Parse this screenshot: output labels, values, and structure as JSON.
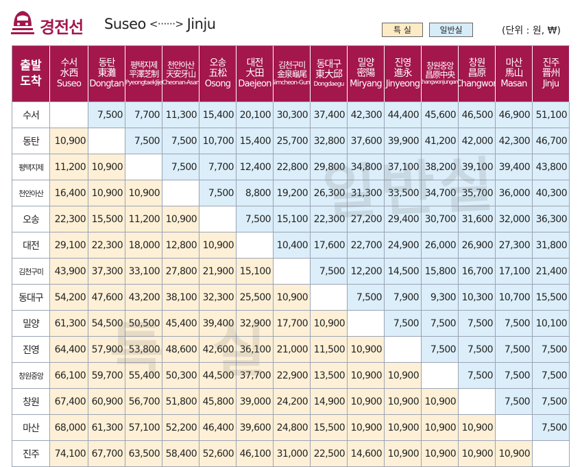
{
  "header": {
    "title_ko": "경전선",
    "route_from": "Suseo",
    "route_arrow": "<······>",
    "route_to": "Jinju",
    "legend_special": "특 실",
    "legend_general": "일반실",
    "unit": "(단위 : 원, ₩)"
  },
  "corner": {
    "top": "출발",
    "bottom": "도착"
  },
  "columns": [
    {
      "ko": "수서",
      "hanja": "水西",
      "en": "Suseo"
    },
    {
      "ko": "동탄",
      "hanja": "東灘",
      "en": "Dongtan"
    },
    {
      "ko": "평택지제",
      "hanja": "平澤芝制",
      "en": "PyeongtaekJije"
    },
    {
      "ko": "천안아산",
      "hanja": "天安牙山",
      "en": "Cheonan-Asan"
    },
    {
      "ko": "오송",
      "hanja": "五松",
      "en": "Osong"
    },
    {
      "ko": "대전",
      "hanja": "大田",
      "en": "Daejeon"
    },
    {
      "ko": "김천구미",
      "hanja": "金泉龜尾",
      "en": "Gimcheon-Gumi"
    },
    {
      "ko": "동대구",
      "hanja": "東大邱",
      "en": "Dongdaegu"
    },
    {
      "ko": "밀양",
      "hanja": "密陽",
      "en": "Miryang"
    },
    {
      "ko": "진영",
      "hanja": "進永",
      "en": "Jinyeong"
    },
    {
      "ko": "창원중앙",
      "hanja": "昌原中央",
      "en": "Changwonjungang"
    },
    {
      "ko": "창원",
      "hanja": "昌原",
      "en": "Changwon"
    },
    {
      "ko": "마산",
      "hanja": "馬山",
      "en": "Masan"
    },
    {
      "ko": "진주",
      "hanja": "晋州",
      "en": "Jinju"
    }
  ],
  "rows": [
    {
      "name": "수서",
      "cells": [
        "",
        "7,500",
        "7,700",
        "11,300",
        "15,400",
        "20,100",
        "30,300",
        "37,400",
        "42,300",
        "44,400",
        "45,600",
        "46,500",
        "46,900",
        "51,100"
      ]
    },
    {
      "name": "동탄",
      "cells": [
        "10,900",
        "",
        "7,500",
        "7,500",
        "10,700",
        "15,400",
        "25,700",
        "32,800",
        "37,600",
        "39,900",
        "41,200",
        "42,000",
        "42,300",
        "46,700"
      ]
    },
    {
      "name": "평택지제",
      "cells": [
        "11,200",
        "10,900",
        "",
        "7,500",
        "7,700",
        "12,400",
        "22,800",
        "29,800",
        "34,800",
        "37,100",
        "38,200",
        "39,100",
        "39,400",
        "43,800"
      ]
    },
    {
      "name": "천안아산",
      "cells": [
        "16,400",
        "10,900",
        "10,900",
        "",
        "7,500",
        "8,800",
        "19,200",
        "26,300",
        "31,300",
        "33,500",
        "34,700",
        "35,700",
        "36,000",
        "40,300"
      ]
    },
    {
      "name": "오송",
      "cells": [
        "22,300",
        "15,500",
        "11,200",
        "10,900",
        "",
        "7,500",
        "15,100",
        "22,300",
        "27,200",
        "29,400",
        "30,700",
        "31,600",
        "32,000",
        "36,300"
      ]
    },
    {
      "name": "대전",
      "cells": [
        "29,100",
        "22,300",
        "18,000",
        "12,800",
        "10,900",
        "",
        "10,400",
        "17,600",
        "22,700",
        "24,900",
        "26,000",
        "26,900",
        "27,300",
        "31,800"
      ]
    },
    {
      "name": "김천구미",
      "cells": [
        "43,900",
        "37,300",
        "33,100",
        "27,800",
        "21,900",
        "15,100",
        "",
        "7,500",
        "12,200",
        "14,500",
        "15,800",
        "16,700",
        "17,100",
        "21,400"
      ]
    },
    {
      "name": "동대구",
      "cells": [
        "54,200",
        "47,600",
        "43,200",
        "38,100",
        "32,300",
        "25,500",
        "10,900",
        "",
        "7,500",
        "7,900",
        "9,300",
        "10,300",
        "10,700",
        "15,500"
      ]
    },
    {
      "name": "밀양",
      "cells": [
        "61,300",
        "54,500",
        "50,500",
        "45,400",
        "39,400",
        "32,900",
        "17,700",
        "10,900",
        "",
        "7,500",
        "7,500",
        "7,500",
        "7,500",
        "10,100"
      ]
    },
    {
      "name": "진영",
      "cells": [
        "64,400",
        "57,900",
        "53,800",
        "48,600",
        "42,600",
        "36,100",
        "21,000",
        "11,500",
        "10,900",
        "",
        "7,500",
        "7,500",
        "7,500",
        "7,500"
      ]
    },
    {
      "name": "창원중앙",
      "cells": [
        "66,100",
        "59,700",
        "55,400",
        "50,300",
        "44,500",
        "37,700",
        "22,900",
        "13,500",
        "10,900",
        "10,900",
        "",
        "7,500",
        "7,500",
        "7,500"
      ]
    },
    {
      "name": "창원",
      "cells": [
        "67,400",
        "60,900",
        "56,700",
        "51,800",
        "45,800",
        "39,000",
        "24,200",
        "14,900",
        "10,900",
        "10,900",
        "10,900",
        "",
        "7,500",
        "7,500"
      ]
    },
    {
      "name": "마산",
      "cells": [
        "68,000",
        "61,300",
        "57,100",
        "52,200",
        "46,400",
        "39,600",
        "24,800",
        "15,500",
        "10,900",
        "10,900",
        "10,900",
        "10,900",
        "",
        "7,500"
      ]
    },
    {
      "name": "진주",
      "cells": [
        "74,100",
        "67,700",
        "63,500",
        "58,400",
        "52,600",
        "46,100",
        "31,000",
        "22,500",
        "14,600",
        "10,900",
        "10,900",
        "10,900",
        "10,900",
        ""
      ]
    }
  ],
  "watermarks": {
    "general": "일반실",
    "special": "특 실"
  },
  "colors": {
    "brand": "#a3174c",
    "special_bg": "#fdf0d6",
    "general_bg": "#dbeef9"
  }
}
